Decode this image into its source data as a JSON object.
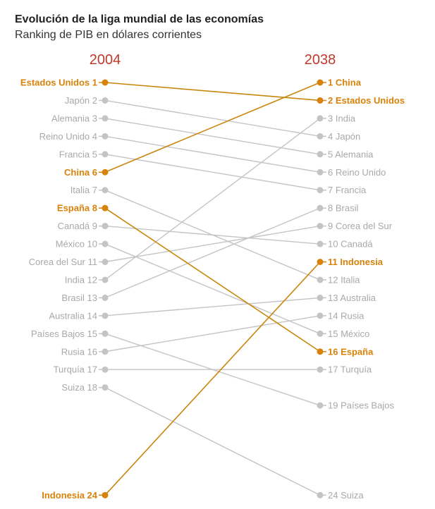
{
  "title": "Evolución de la liga mundial de las economías",
  "subtitle": "Ranking de PIB en dólares corrientes",
  "colors": {
    "highlight": "#d9820a",
    "highlight_line": "#c9860f",
    "muted": "#c4c4c4",
    "muted_text": "#a9a9a9",
    "year": "#c0392b"
  },
  "chart_data": {
    "type": "slope",
    "years": [
      "2004",
      "2038"
    ],
    "rank_range": [
      1,
      24
    ],
    "series": [
      {
        "country_left": "Estados Unidos",
        "country_right": "Estados Unidos",
        "rank_2004": 1,
        "rank_2038": 2,
        "highlight": true
      },
      {
        "country_left": "Japón",
        "country_right": "Japón",
        "rank_2004": 2,
        "rank_2038": 4,
        "highlight": false
      },
      {
        "country_left": "Alemania",
        "country_right": "Alemania",
        "rank_2004": 3,
        "rank_2038": 5,
        "highlight": false
      },
      {
        "country_left": "Reino Unido",
        "country_right": "Reino Unido",
        "rank_2004": 4,
        "rank_2038": 6,
        "highlight": false
      },
      {
        "country_left": "Francia",
        "country_right": "Francia",
        "rank_2004": 5,
        "rank_2038": 7,
        "highlight": false
      },
      {
        "country_left": "China",
        "country_right": "China",
        "rank_2004": 6,
        "rank_2038": 1,
        "highlight": true
      },
      {
        "country_left": "Italia",
        "country_right": "Italia",
        "rank_2004": 7,
        "rank_2038": 12,
        "highlight": false
      },
      {
        "country_left": "España",
        "country_right": "España",
        "rank_2004": 8,
        "rank_2038": 16,
        "highlight": true
      },
      {
        "country_left": "Canadá",
        "country_right": "Canadá",
        "rank_2004": 9,
        "rank_2038": 10,
        "highlight": false
      },
      {
        "country_left": "México",
        "country_right": "México",
        "rank_2004": 10,
        "rank_2038": 15,
        "highlight": false
      },
      {
        "country_left": "Corea del Sur",
        "country_right": "Corea del Sur",
        "rank_2004": 11,
        "rank_2038": 9,
        "highlight": false
      },
      {
        "country_left": "India",
        "country_right": "India",
        "rank_2004": 12,
        "rank_2038": 3,
        "highlight": false
      },
      {
        "country_left": "Brasil",
        "country_right": "Brasil",
        "rank_2004": 13,
        "rank_2038": 8,
        "highlight": false
      },
      {
        "country_left": "Australia",
        "country_right": "Australia",
        "rank_2004": 14,
        "rank_2038": 13,
        "highlight": false
      },
      {
        "country_left": "Países Bajos",
        "country_right": "Países Bajos",
        "rank_2004": 15,
        "rank_2038": 19,
        "highlight": false
      },
      {
        "country_left": "Rusia",
        "country_right": "Rusia",
        "rank_2004": 16,
        "rank_2038": 14,
        "highlight": false
      },
      {
        "country_left": "Turquía",
        "country_right": "Turquía",
        "rank_2004": 17,
        "rank_2038": 17,
        "highlight": false
      },
      {
        "country_left": "Suiza",
        "country_right": "Suiza",
        "rank_2004": 18,
        "rank_2038": 24,
        "highlight": false
      },
      {
        "country_left": "Indonesia",
        "country_right": "Indonesia",
        "rank_2004": 24,
        "rank_2038": 11,
        "highlight": true
      }
    ]
  }
}
